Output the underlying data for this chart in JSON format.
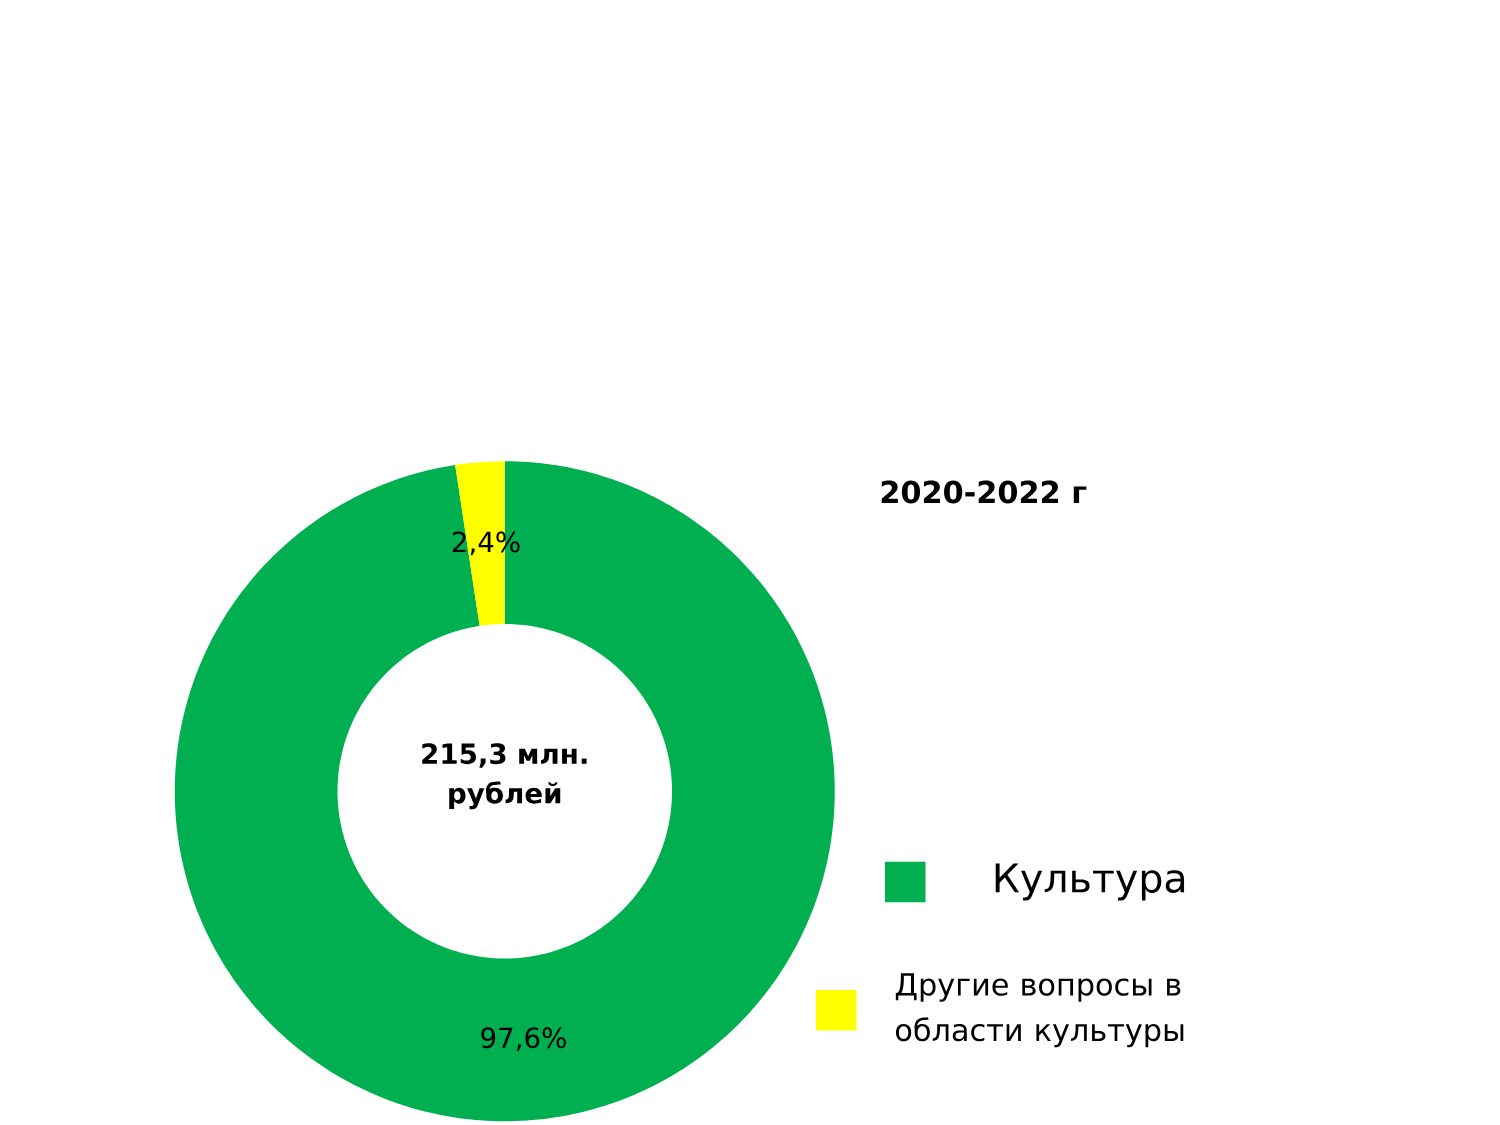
{
  "chart_data": {
    "type": "donut",
    "title": "2020-2022 г",
    "categories": [
      "Культура",
      "Другие вопросы в области культуры"
    ],
    "values": [
      97.6,
      2.4
    ],
    "colors": [
      "#00b050",
      "#ffff00"
    ],
    "value_labels": [
      "97,6%",
      "2,4%"
    ],
    "annotations": [
      "215,3 млн. рублей"
    ],
    "legend": "right"
  }
}
